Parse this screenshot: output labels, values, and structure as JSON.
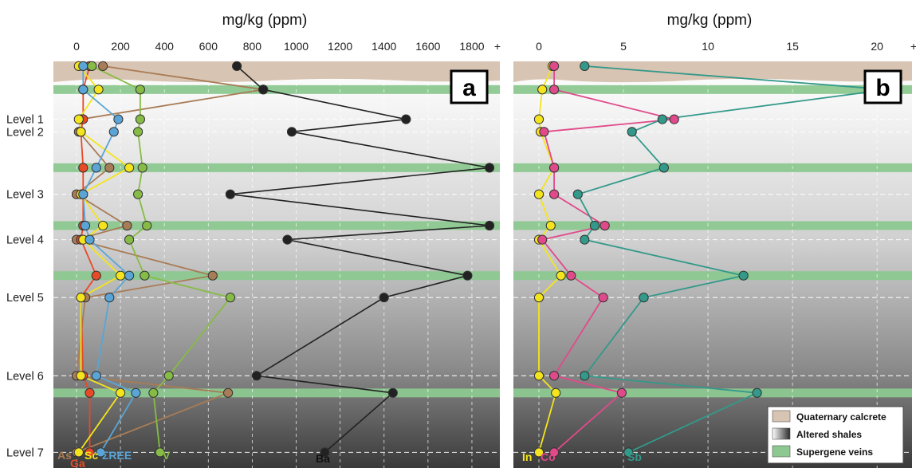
{
  "colors": {
    "calcrete": "#d8c4b2",
    "vein": "#8cc890",
    "As": "#a87c56",
    "Ga": "#e84a27",
    "Sc": "#f4e41e",
    "REE": "#5aa5d6",
    "V": "#86bc45",
    "Ba": "#222222",
    "In": "#f4e41e",
    "Co": "#e04a8a",
    "Sb": "#33998a"
  },
  "legend": {
    "calcrete": "Quaternary calcrete",
    "shales": "Altered shales",
    "veins": "Supergene veins"
  },
  "chart_data": [
    {
      "panel": "a",
      "type": "line",
      "title": "mg/kg (ppm)",
      "xlim": [
        0,
        1880
      ],
      "xticks": [
        "0",
        "200",
        "400",
        "600",
        "800",
        "1000",
        "1200",
        "1400",
        "1600",
        "1800",
        "+"
      ],
      "levels": [
        "Level 1",
        "Level 2",
        "Level 3",
        "Level 4",
        "Level 5",
        "Level 6",
        "Level 7"
      ],
      "series": [
        {
          "name": "As",
          "points": [
            [
              120,
              0.3
            ],
            [
              850,
              1.8
            ],
            [
              20,
              3.7
            ],
            [
              10,
              4.5
            ],
            [
              150,
              6.8
            ],
            [
              0,
              8.5
            ],
            [
              230,
              10.5
            ],
            [
              0,
              11.4
            ],
            [
              620,
              13.7
            ],
            [
              40,
              15.1
            ],
            [
              0,
              20.1
            ],
            [
              690,
              21.2
            ],
            [
              0,
              25.0
            ]
          ]
        },
        {
          "name": "Ga",
          "points": [
            [
              60,
              0.3
            ],
            [
              30,
              1.8
            ],
            [
              30,
              3.7
            ],
            [
              20,
              4.5
            ],
            [
              30,
              6.8
            ],
            [
              30,
              8.5
            ],
            [
              30,
              10.5
            ],
            [
              20,
              11.4
            ],
            [
              90,
              13.7
            ],
            [
              20,
              15.1
            ],
            [
              30,
              20.1
            ],
            [
              60,
              21.2
            ],
            [
              60,
              25.0
            ]
          ]
        },
        {
          "name": "Sc",
          "points": [
            [
              10,
              0.3
            ],
            [
              100,
              1.8
            ],
            [
              10,
              3.7
            ],
            [
              20,
              4.5
            ],
            [
              240,
              6.8
            ],
            [
              20,
              8.5
            ],
            [
              120,
              10.5
            ],
            [
              30,
              11.4
            ],
            [
              200,
              13.7
            ],
            [
              20,
              15.1
            ],
            [
              20,
              20.1
            ],
            [
              200,
              21.2
            ],
            [
              10,
              25.0
            ]
          ]
        },
        {
          "name": "ΣREE",
          "points": [
            [
              30,
              0.3
            ],
            [
              30,
              1.8
            ],
            [
              190,
              3.7
            ],
            [
              170,
              4.5
            ],
            [
              90,
              6.8
            ],
            [
              30,
              8.5
            ],
            [
              40,
              10.5
            ],
            [
              60,
              11.4
            ],
            [
              240,
              13.7
            ],
            [
              150,
              15.1
            ],
            [
              90,
              20.1
            ],
            [
              270,
              21.2
            ],
            [
              110,
              25.0
            ]
          ]
        },
        {
          "name": "V",
          "points": [
            [
              70,
              0.3
            ],
            [
              290,
              1.8
            ],
            [
              290,
              3.7
            ],
            [
              280,
              4.5
            ],
            [
              300,
              6.8
            ],
            [
              280,
              8.5
            ],
            [
              320,
              10.5
            ],
            [
              240,
              11.4
            ],
            [
              310,
              13.7
            ],
            [
              700,
              15.1
            ],
            [
              420,
              20.1
            ],
            [
              350,
              21.2
            ],
            [
              380,
              25.0
            ]
          ]
        },
        {
          "name": "Ba",
          "points": [
            [
              730,
              0.3
            ],
            [
              850,
              1.8
            ],
            [
              1500,
              3.7
            ],
            [
              980,
              4.5
            ],
            [
              1880,
              6.8
            ],
            [
              700,
              8.5
            ],
            [
              1880,
              10.5
            ],
            [
              960,
              11.4
            ],
            [
              1780,
              13.7
            ],
            [
              1400,
              15.1
            ],
            [
              820,
              20.1
            ],
            [
              1440,
              21.2
            ],
            [
              1130,
              25.0
            ]
          ]
        }
      ]
    },
    {
      "panel": "b",
      "type": "line",
      "title": "mg/kg (ppm)",
      "xlim": [
        0,
        21.5
      ],
      "xticks": [
        "0",
        "5",
        "10",
        "15",
        "20",
        "+"
      ],
      "series": [
        {
          "name": "In",
          "points": [
            [
              0.8,
              0.3
            ],
            [
              0.2,
              1.8
            ],
            [
              0.0,
              3.7
            ],
            [
              0.1,
              4.5
            ],
            [
              0.9,
              6.8
            ],
            [
              0.0,
              8.5
            ],
            [
              0.7,
              10.5
            ],
            [
              0.0,
              11.4
            ],
            [
              1.3,
              13.7
            ],
            [
              0.0,
              15.1
            ],
            [
              0.0,
              20.1
            ],
            [
              1.0,
              21.2
            ],
            [
              0.0,
              25.0
            ]
          ]
        },
        {
          "name": "Co",
          "points": [
            [
              0.9,
              0.3
            ],
            [
              0.9,
              1.8
            ],
            [
              8.0,
              3.7
            ],
            [
              0.3,
              4.5
            ],
            [
              0.9,
              6.8
            ],
            [
              0.9,
              8.5
            ],
            [
              3.9,
              10.5
            ],
            [
              0.2,
              11.4
            ],
            [
              1.9,
              13.7
            ],
            [
              3.8,
              15.1
            ],
            [
              0.9,
              20.1
            ],
            [
              4.9,
              21.2
            ],
            [
              0.9,
              25.0
            ]
          ]
        },
        {
          "name": "Sb",
          "points": [
            [
              2.7,
              0.3
            ],
            [
              20.6,
              1.8
            ],
            [
              7.3,
              3.7
            ],
            [
              5.5,
              4.5
            ],
            [
              7.4,
              6.8
            ],
            [
              2.3,
              8.5
            ],
            [
              3.3,
              10.5
            ],
            [
              2.7,
              11.4
            ],
            [
              12.1,
              13.7
            ],
            [
              6.2,
              15.1
            ],
            [
              2.7,
              20.1
            ],
            [
              12.9,
              21.2
            ],
            [
              5.3,
              25.0
            ]
          ]
        }
      ]
    }
  ]
}
